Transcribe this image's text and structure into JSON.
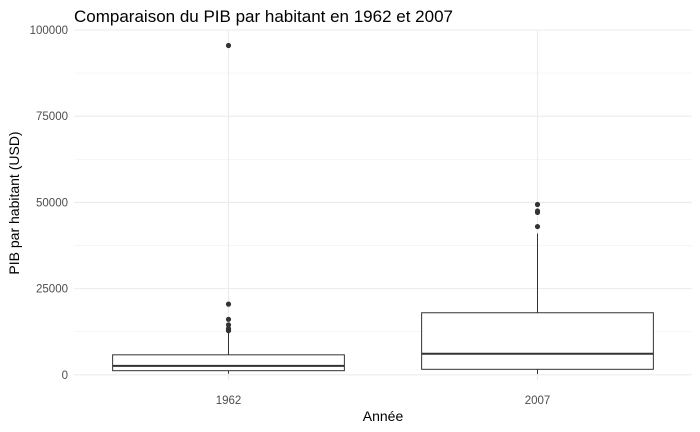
{
  "chart_data": {
    "type": "boxplot",
    "title": "Comparaison du PIB par habitant en 1962 et 2007",
    "xlabel": "Année",
    "ylabel": "PIB par habitant (USD)",
    "ylim": [
      -1500,
      100000
    ],
    "yticks": [
      0,
      25000,
      50000,
      75000,
      100000
    ],
    "ytick_labels": [
      "0",
      "25000",
      "50000",
      "75000",
      "100000"
    ],
    "grid": true,
    "categories": [
      "1962",
      "2007"
    ],
    "boxes": [
      {
        "category": "1962",
        "whisker_low": 330,
        "q1": 1200,
        "median": 2600,
        "q3": 5800,
        "whisker_high": 12500,
        "outliers": [
          12800,
          13000,
          13400,
          14500,
          16100,
          20500,
          95500
        ]
      },
      {
        "category": "2007",
        "whisker_low": 280,
        "q1": 1600,
        "median": 6100,
        "q3": 18000,
        "whisker_high": 41000,
        "outliers": [
          43000,
          47100,
          47500,
          49400
        ]
      }
    ]
  }
}
